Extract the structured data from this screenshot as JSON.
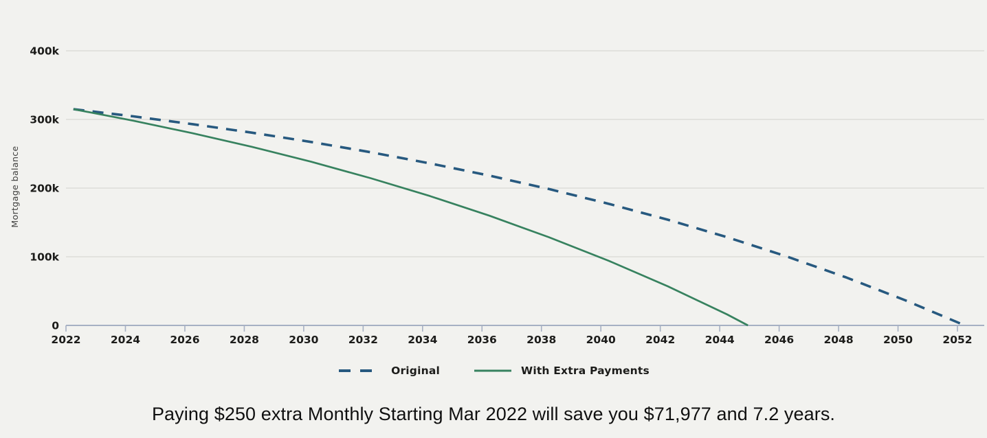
{
  "chart_data": {
    "type": "line",
    "title": "",
    "xlabel": "",
    "ylabel": "Mortgage balance",
    "xlim": [
      2022,
      2052
    ],
    "ylim": [
      0,
      400000
    ],
    "grid": true,
    "legend_position": "bottom",
    "x_ticks": [
      2022,
      2024,
      2026,
      2028,
      2030,
      2032,
      2034,
      2036,
      2038,
      2040,
      2042,
      2044,
      2046,
      2048,
      2050,
      2052
    ],
    "y_ticks": [
      {
        "value": 0,
        "label": "0"
      },
      {
        "value": 100000,
        "label": "100k"
      },
      {
        "value": 200000,
        "label": "200k"
      },
      {
        "value": 300000,
        "label": "300k"
      },
      {
        "value": 400000,
        "label": "400k"
      }
    ],
    "colors": {
      "background": "#f2f2ef",
      "gridline": "#d8d8d4",
      "axis": "#a6b0c3",
      "tick_text": "#1c1c1a",
      "ylabel_text": "#3e3e3c"
    },
    "series": [
      {
        "name": "Original",
        "style": "dashed",
        "color": "#27597f",
        "points": [
          [
            2022.25,
            315000
          ],
          [
            2024.25,
            304600
          ],
          [
            2026.25,
            293200
          ],
          [
            2028.25,
            280800
          ],
          [
            2030.25,
            267200
          ],
          [
            2032.25,
            252300
          ],
          [
            2034.25,
            236000
          ],
          [
            2036.25,
            218200
          ],
          [
            2038.25,
            198700
          ],
          [
            2040.25,
            177300
          ],
          [
            2042.25,
            154000
          ],
          [
            2044.25,
            128500
          ],
          [
            2046.25,
            100500
          ],
          [
            2048.25,
            70000
          ],
          [
            2050.25,
            36500
          ],
          [
            2052.25,
            0
          ]
        ]
      },
      {
        "name": "With Extra Payments",
        "style": "solid",
        "color": "#37825f",
        "points": [
          [
            2022.25,
            315000
          ],
          [
            2024.25,
            298300
          ],
          [
            2026.25,
            280100
          ],
          [
            2028.25,
            260200
          ],
          [
            2030.25,
            238400
          ],
          [
            2032.25,
            214500
          ],
          [
            2034.25,
            188400
          ],
          [
            2036.25,
            159800
          ],
          [
            2038.25,
            128500
          ],
          [
            2040.25,
            94400
          ],
          [
            2042.25,
            57000
          ],
          [
            2044.25,
            16000
          ],
          [
            2044.95,
            0
          ]
        ]
      }
    ]
  },
  "legend": {
    "items": [
      {
        "label": "Original"
      },
      {
        "label": "With Extra Payments"
      }
    ]
  },
  "caption": "Paying $250 extra Monthly Starting Mar 2022 will save you $71,977 and 7.2 years."
}
